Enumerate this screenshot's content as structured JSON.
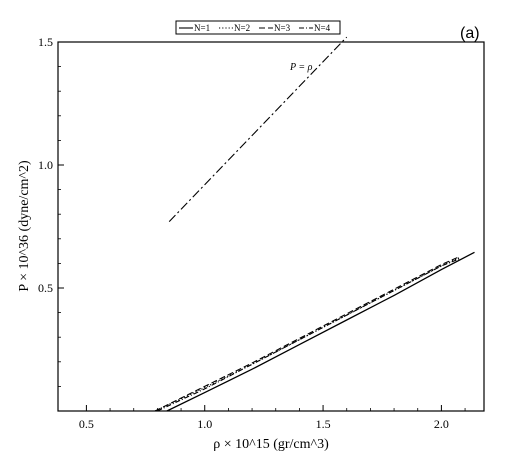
{
  "chart_data": {
    "type": "line",
    "panel_label": "(a)",
    "xlabel": "ρ × 10^15 (gr/cm^3)",
    "ylabel": "P × 10^36 (dyne/cm^2)",
    "xlim": [
      0.38,
      2.18
    ],
    "ylim": [
      0.0,
      1.5
    ],
    "x_ticks": [
      0.5,
      1.0,
      1.5,
      2.0
    ],
    "x_tick_labels": [
      "0.5",
      "1.0",
      "1.5",
      "2.0"
    ],
    "y_ticks": [
      0.5,
      1.0,
      1.5
    ],
    "y_tick_labels": [
      "0.5",
      "1.0",
      "1.5"
    ],
    "grid": false,
    "legend_position": "top-center",
    "annotations": [
      {
        "text": "P = ρ",
        "x": 1.55,
        "y": 1.43
      }
    ],
    "series": [
      {
        "name": "N=1",
        "dash": "solid",
        "x": [
          0.84,
          1.0,
          1.2,
          1.4,
          1.6,
          1.8,
          2.0,
          2.14
        ],
        "y": [
          0.0,
          0.075,
          0.17,
          0.27,
          0.37,
          0.47,
          0.575,
          0.645
        ]
      },
      {
        "name": "N=2",
        "dash": "dotted",
        "x": [
          0.79,
          1.0,
          1.2,
          1.4,
          1.6,
          1.8,
          2.0,
          2.08
        ],
        "y": [
          0.0,
          0.095,
          0.19,
          0.29,
          0.39,
          0.49,
          0.59,
          0.625
        ]
      },
      {
        "name": "N=3",
        "dash": "dashed",
        "x": [
          0.79,
          1.0,
          1.2,
          1.4,
          1.6,
          1.8,
          2.0,
          2.07
        ],
        "y": [
          0.0,
          0.1,
          0.195,
          0.295,
          0.395,
          0.495,
          0.595,
          0.625
        ]
      },
      {
        "name": "N=4",
        "dash": "dashdot",
        "x": [
          0.8,
          1.0,
          1.2,
          1.4,
          1.6,
          1.8,
          2.0,
          2.08
        ],
        "y": [
          0.0,
          0.09,
          0.19,
          0.29,
          0.39,
          0.49,
          0.59,
          0.62
        ]
      },
      {
        "name": "P = ρ",
        "dash": "longdashdot",
        "x": [
          0.85,
          1.0,
          1.2,
          1.4,
          1.6
        ],
        "y": [
          0.77,
          0.92,
          1.12,
          1.32,
          1.52
        ]
      }
    ]
  }
}
